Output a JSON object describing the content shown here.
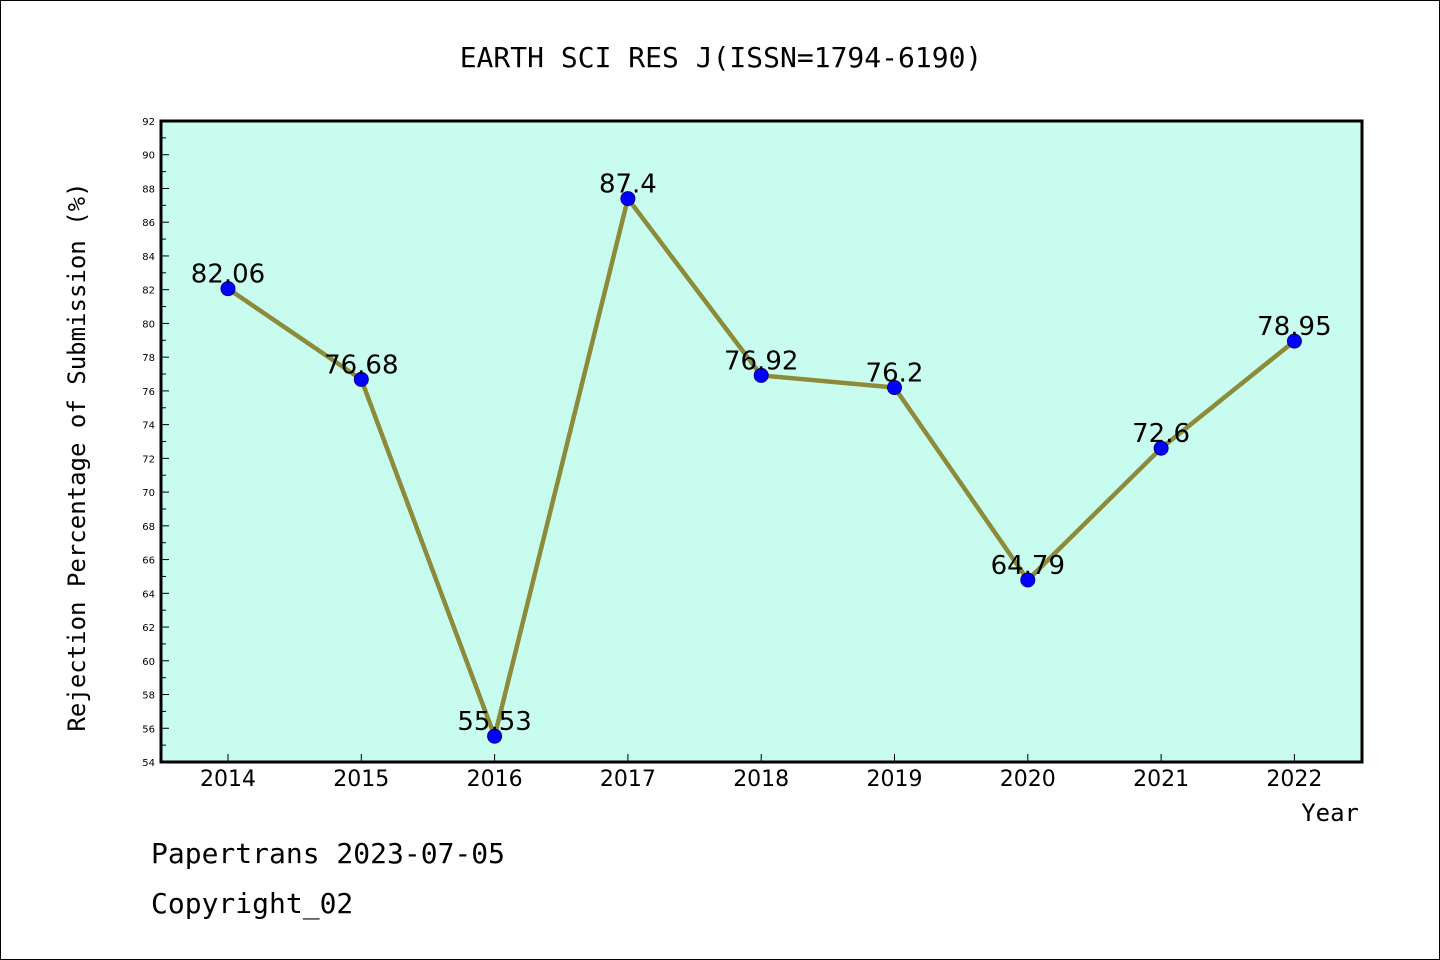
{
  "chart_data": {
    "type": "line",
    "title": "EARTH SCI RES J(ISSN=1794-6190)",
    "xlabel": "Year",
    "ylabel": "Rejection Percentage of Submission (%)",
    "categories": [
      "2014",
      "2015",
      "2016",
      "2017",
      "2018",
      "2019",
      "2020",
      "2021",
      "2022"
    ],
    "series": [
      {
        "values": [
          82.06,
          76.68,
          55.53,
          87.4,
          76.92,
          76.2,
          64.79,
          72.6,
          78.95
        ]
      }
    ],
    "data_labels": [
      "82.06",
      "76.68",
      "55.53",
      "87.4",
      "76.92",
      "76.2",
      "64.79",
      "72.6",
      "78.95"
    ],
    "ylim": [
      54,
      92
    ],
    "y_ticks": [
      54,
      56,
      58,
      60,
      62,
      64,
      66,
      68,
      70,
      72,
      74,
      76,
      78,
      80,
      82,
      84,
      86,
      88,
      90,
      92
    ],
    "grid": false,
    "legend": "none",
    "colors": {
      "plot_background": "#c8fcee",
      "line": "#8b8b3a",
      "marker": "#0000ff",
      "marker_edge": "#000080",
      "frame": "#000000"
    }
  },
  "footer": {
    "line1": "Papertrans 2023-07-05",
    "line2": "Copyright_02"
  }
}
